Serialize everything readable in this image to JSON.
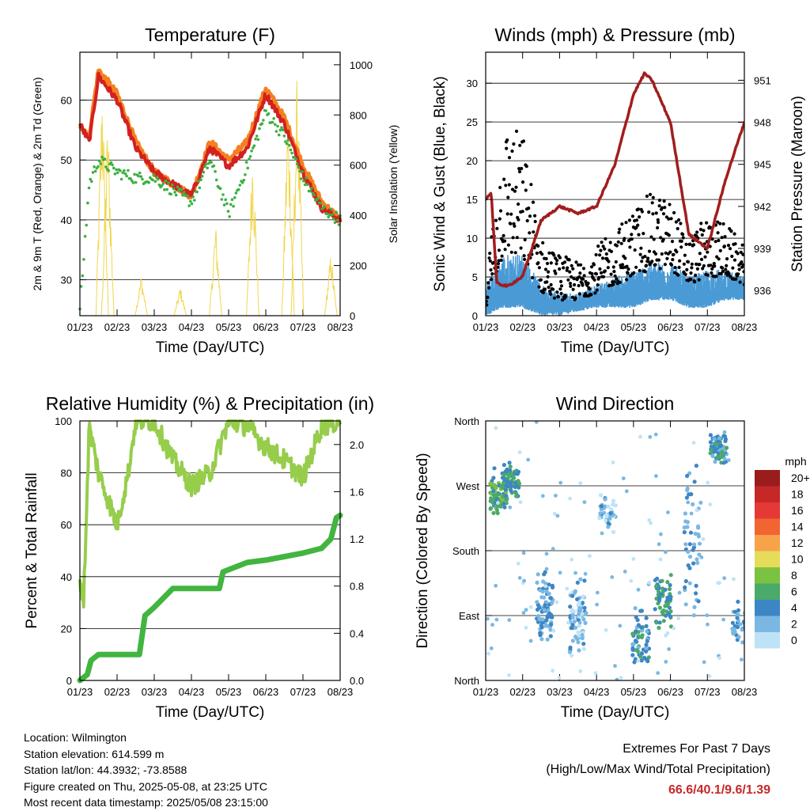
{
  "time_ticks": [
    "01/23",
    "02/23",
    "03/23",
    "04/23",
    "05/23",
    "06/23",
    "07/23",
    "08/23"
  ],
  "colors": {
    "temp2m": "#d32020",
    "temp9m": "#f4801f",
    "dewpoint": "#3cb043",
    "solar": "#f2d64c",
    "wind": "#4a9ad6",
    "gust": "#000000",
    "pressure": "#a11d1d",
    "rh": "#96cd4b",
    "precip": "#41b53f",
    "extremes": "#c62828"
  },
  "chart_data": [
    {
      "id": "temperature",
      "type": "line",
      "title": "Temperature (F)",
      "xlabel": "Time (Day/UTC)",
      "ylabel": "2m & 9m T (Red, Orange) & 2m Td (Green)",
      "ylabel_right": "Solar Insolation (Yellow)",
      "x_ticks": [
        "01/23",
        "02/23",
        "03/23",
        "04/23",
        "05/23",
        "06/23",
        "07/23",
        "08/23"
      ],
      "ylim": [
        24,
        68
      ],
      "yticks": [
        30,
        40,
        50,
        60
      ],
      "ylim_right": [
        0,
        1050
      ],
      "yticks_right": [
        0,
        200,
        400,
        600,
        800,
        1000
      ],
      "grid": "horizontal",
      "x": [
        0,
        0.25,
        0.5,
        1,
        1.5,
        2,
        2.5,
        3,
        3.5,
        4,
        4.5,
        5,
        5.5,
        6,
        6.5,
        7
      ],
      "series": [
        {
          "name": "2m T",
          "axis": "left",
          "values": [
            56,
            53,
            64,
            60,
            52,
            48,
            46,
            44,
            52,
            49,
            52,
            61,
            56,
            48,
            42,
            40
          ]
        },
        {
          "name": "9m T",
          "axis": "left",
          "values": [
            56,
            54,
            65,
            61,
            53,
            48,
            46,
            44,
            53,
            50,
            53,
            62,
            57,
            49,
            43,
            40
          ]
        },
        {
          "name": "2m Td",
          "axis": "left",
          "values": [
            25,
            46,
            50,
            48,
            47,
            47,
            45,
            43,
            50,
            41,
            49,
            58,
            54,
            47,
            42,
            40
          ]
        },
        {
          "name": "Solar Insolation",
          "axis": "right",
          "peaks_x": [
            0.6,
            0.75,
            1.65,
            2.7,
            3.65,
            4.65,
            5.6,
            5.85,
            6.75
          ],
          "peaks_v": [
            980,
            820,
            170,
            120,
            380,
            720,
            900,
            1020,
            260
          ]
        }
      ]
    },
    {
      "id": "winds",
      "type": "scatter",
      "title": "Winds (mph) & Pressure (mb)",
      "xlabel": "Time (Day/UTC)",
      "ylabel": "Sonic Wind & Gust (Blue, Black)",
      "ylabel_right": "Station Pressure (Maroon)",
      "x_ticks": [
        "01/23",
        "02/23",
        "03/23",
        "04/23",
        "05/23",
        "06/23",
        "07/23",
        "08/23"
      ],
      "ylim": [
        0,
        34
      ],
      "yticks": [
        0,
        5,
        10,
        15,
        20,
        25,
        30
      ],
      "ylim_right": [
        934.2,
        953
      ],
      "yticks_right": [
        936,
        939,
        942,
        945,
        948,
        951
      ],
      "grid": "horizontal",
      "pressure": {
        "x": [
          0,
          0.15,
          0.3,
          0.6,
          1,
          1.5,
          2,
          2.5,
          3,
          3.5,
          4,
          4.3,
          4.5,
          5,
          5.5,
          6,
          6.5,
          7
        ],
        "values": [
          942.5,
          943,
          936.5,
          936.3,
          937,
          941,
          942,
          941.5,
          942,
          945,
          950,
          951.5,
          951,
          948,
          940,
          939,
          944,
          948
        ]
      },
      "wind_mean_envelope": {
        "x": [
          0,
          0.5,
          1,
          1.5,
          2,
          2.5,
          3,
          3.5,
          4,
          4.5,
          5,
          5.5,
          6,
          6.5,
          7
        ],
        "low": [
          0,
          1,
          1,
          0,
          0,
          0.5,
          1,
          1,
          1,
          2,
          2,
          1,
          1,
          2,
          2
        ],
        "high": [
          4,
          8,
          8,
          4,
          3,
          3,
          4,
          5,
          6,
          7,
          7,
          5,
          6,
          6,
          5
        ]
      },
      "gust_envelope": {
        "x": [
          0,
          0.5,
          1,
          1.5,
          2,
          2.5,
          3,
          3.5,
          4,
          4.5,
          5,
          5.5,
          6,
          6.5,
          7
        ],
        "low": [
          1,
          8,
          7,
          3,
          2,
          2,
          3,
          4,
          5,
          6,
          6,
          4,
          5,
          5,
          4
        ],
        "high": [
          5,
          25,
          24,
          10,
          8,
          7,
          9,
          11,
          14,
          16,
          15,
          10,
          13,
          12,
          9
        ]
      }
    },
    {
      "id": "humidity",
      "type": "line",
      "title": "Relative Humidity (%) & Precipitation (in)",
      "xlabel": "Time (Day/UTC)",
      "ylabel": "Percent & Total Rainfall",
      "x_ticks": [
        "01/23",
        "02/23",
        "03/23",
        "04/23",
        "05/23",
        "06/23",
        "07/23",
        "08/23"
      ],
      "ylim": [
        0,
        100
      ],
      "yticks": [
        0,
        20,
        40,
        60,
        80,
        100
      ],
      "ylim_right": [
        0,
        2.2
      ],
      "yticks_right": [
        0.0,
        0.4,
        0.8,
        1.2,
        1.6,
        2.0
      ],
      "grid": "horizontal",
      "series": [
        {
          "name": "Relative Humidity",
          "axis": "left",
          "x": [
            0,
            0.1,
            0.25,
            0.5,
            1,
            1.3,
            1.5,
            2,
            2.5,
            3,
            3.5,
            4,
            4.5,
            5,
            5.5,
            6,
            6.5,
            7
          ],
          "values": [
            40,
            30,
            98,
            80,
            60,
            80,
            100,
            100,
            85,
            75,
            80,
            100,
            98,
            90,
            85,
            78,
            98,
            100
          ]
        },
        {
          "name": "Total Precipitation",
          "axis": "right",
          "x": [
            0,
            0.2,
            0.3,
            0.5,
            1.6,
            1.75,
            2.0,
            2.5,
            3,
            3.75,
            3.85,
            4.5,
            5,
            5.5,
            6,
            6.5,
            6.75,
            6.9,
            7
          ],
          "values": [
            0,
            0.05,
            0.17,
            0.22,
            0.22,
            0.55,
            0.62,
            0.78,
            0.78,
            0.78,
            0.92,
            1.0,
            1.02,
            1.05,
            1.08,
            1.12,
            1.2,
            1.38,
            1.4
          ]
        }
      ]
    },
    {
      "id": "wind_direction",
      "type": "scatter",
      "title": "Wind Direction",
      "xlabel": "Time (Day/UTC)",
      "ylabel": "Direction (Colored By Speed)",
      "x_ticks": [
        "01/23",
        "02/23",
        "03/23",
        "04/23",
        "05/23",
        "06/23",
        "07/23",
        "08/23"
      ],
      "y_categories": [
        "North",
        "East",
        "South",
        "West",
        "North"
      ],
      "ylim": [
        0,
        360
      ],
      "grid": "horizontal",
      "colorbar": {
        "unit": "mph",
        "labels": [
          "20+",
          "18",
          "16",
          "14",
          "12",
          "10",
          "8",
          "6",
          "4",
          "2",
          "0"
        ],
        "colors": [
          "#9b1c1c",
          "#c62828",
          "#e53935",
          "#f26430",
          "#f8a24a",
          "#e5dd5a",
          "#7cc242",
          "#4aaa6a",
          "#3d86c4",
          "#7ab8e2",
          "#bfe3f6"
        ]
      },
      "clusters": [
        {
          "x": 0.35,
          "dir": 260,
          "spread": 40,
          "speed": 6,
          "n": 90
        },
        {
          "x": 0.7,
          "dir": 275,
          "spread": 30,
          "speed": 5,
          "n": 60
        },
        {
          "x": 1.6,
          "dir": 100,
          "spread": 60,
          "speed": 3,
          "n": 80
        },
        {
          "x": 2.5,
          "dir": 90,
          "spread": 60,
          "speed": 2,
          "n": 70
        },
        {
          "x": 3.3,
          "dir": 230,
          "spread": 30,
          "speed": 2,
          "n": 40
        },
        {
          "x": 4.2,
          "dir": 60,
          "spread": 45,
          "speed": 4,
          "n": 60
        },
        {
          "x": 4.8,
          "dir": 110,
          "spread": 40,
          "speed": 5,
          "n": 60
        },
        {
          "x": 5.6,
          "dir": 190,
          "spread": 120,
          "speed": 3,
          "n": 50
        },
        {
          "x": 6.3,
          "dir": 320,
          "spread": 25,
          "speed": 4,
          "n": 70
        },
        {
          "x": 6.9,
          "dir": 80,
          "spread": 30,
          "speed": 3,
          "n": 30
        }
      ]
    }
  ],
  "info": {
    "location": "Location: Wilmington",
    "elevation": "Station elevation: 614.599 m",
    "latlon": "Station lat/lon: 44.3932; -73.8588",
    "created": "Figure created on Thu, 2025-05-08, at 23:25 UTC",
    "recent": "Most recent data timestamp: 2025/05/08 23:15:00"
  },
  "extremes": {
    "title": "Extremes For Past 7 Days",
    "subtitle": "(High/Low/Max Wind/Total Precipitation)",
    "values": "66.6/40.1/9.6/1.39"
  }
}
